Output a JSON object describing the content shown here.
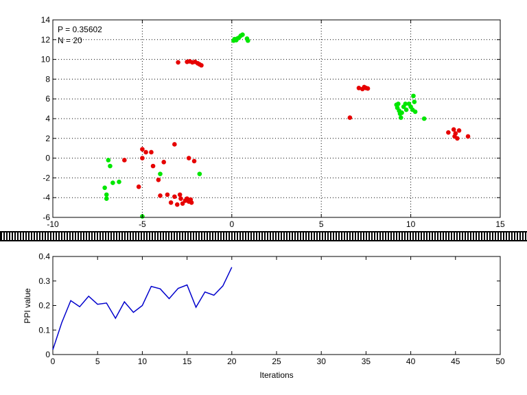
{
  "colors": {
    "background": "#ffffff",
    "axis": "#000000",
    "grid": "#000000",
    "green_points": "#00e600",
    "red_points": "#e60000",
    "line": "#0000cc",
    "divider": "#000000"
  },
  "chart_data": [
    {
      "type": "scatter",
      "title": "",
      "xlabel": "",
      "ylabel": "",
      "xlim": [
        -10,
        15
      ],
      "ylim": [
        -6,
        14
      ],
      "xticks": [
        -10,
        -5,
        0,
        5,
        10,
        15
      ],
      "yticks": [
        -6,
        -4,
        -2,
        0,
        2,
        4,
        6,
        8,
        10,
        12,
        14
      ],
      "grid": true,
      "annotations": [
        "P = 0.35602",
        "N = 20"
      ],
      "series": [
        {
          "color": "#00e600",
          "points": [
            [
              0.1,
              11.9
            ],
            [
              0.2,
              12.0
            ],
            [
              0.3,
              12.1
            ],
            [
              0.25,
              11.95
            ],
            [
              0.4,
              12.2
            ],
            [
              0.5,
              12.4
            ],
            [
              0.6,
              12.5
            ],
            [
              0.85,
              12.1
            ],
            [
              0.9,
              11.9
            ],
            [
              0.15,
              12.05
            ],
            [
              9.2,
              5.4
            ],
            [
              9.3,
              5.5
            ],
            [
              9.25,
              5.1
            ],
            [
              9.35,
              4.8
            ],
            [
              9.4,
              4.5
            ],
            [
              9.45,
              4.1
            ],
            [
              9.5,
              4.6
            ],
            [
              9.6,
              5.2
            ],
            [
              9.7,
              5.5
            ],
            [
              9.75,
              4.9
            ],
            [
              9.9,
              5.5
            ],
            [
              10.0,
              5.2
            ],
            [
              10.1,
              4.9
            ],
            [
              10.15,
              6.3
            ],
            [
              10.2,
              5.7
            ],
            [
              10.25,
              4.7
            ],
            [
              10.75,
              4.0
            ],
            [
              -6.9,
              -0.2
            ],
            [
              -6.8,
              -0.8
            ],
            [
              -6.65,
              -2.5
            ],
            [
              -6.3,
              -2.4
            ],
            [
              -7.1,
              -3.0
            ],
            [
              -7.0,
              -3.7
            ],
            [
              -7.0,
              -4.1
            ],
            [
              -4.0,
              -1.6
            ],
            [
              -1.8,
              -1.6
            ],
            [
              -5.0,
              -5.9
            ]
          ]
        },
        {
          "color": "#e60000",
          "points": [
            [
              -3.0,
              9.7
            ],
            [
              -2.5,
              9.75
            ],
            [
              -2.35,
              9.8
            ],
            [
              -2.2,
              9.7
            ],
            [
              -2.05,
              9.75
            ],
            [
              -1.9,
              9.6
            ],
            [
              -1.8,
              9.5
            ],
            [
              -1.7,
              9.4
            ],
            [
              7.1,
              7.1
            ],
            [
              7.3,
              7.0
            ],
            [
              7.4,
              7.2
            ],
            [
              7.5,
              7.1
            ],
            [
              7.6,
              7.05
            ],
            [
              6.6,
              4.1
            ],
            [
              12.1,
              2.6
            ],
            [
              12.4,
              2.9
            ],
            [
              12.5,
              2.5
            ],
            [
              12.45,
              2.2
            ],
            [
              12.6,
              2.0
            ],
            [
              12.7,
              2.8
            ],
            [
              13.2,
              2.2
            ],
            [
              -6.0,
              -0.2
            ],
            [
              -5.0,
              0.0
            ],
            [
              -5.0,
              0.9
            ],
            [
              -4.8,
              0.6
            ],
            [
              -4.5,
              0.6
            ],
            [
              -4.4,
              -0.8
            ],
            [
              -4.1,
              -2.2
            ],
            [
              -3.8,
              -0.4
            ],
            [
              -3.2,
              1.4
            ],
            [
              -2.4,
              0.0
            ],
            [
              -2.1,
              -0.3
            ],
            [
              -5.2,
              -2.9
            ],
            [
              -4.0,
              -3.8
            ],
            [
              -3.6,
              -3.7
            ],
            [
              -3.4,
              -4.5
            ],
            [
              -3.2,
              -3.9
            ],
            [
              -3.05,
              -4.7
            ],
            [
              -2.9,
              -3.7
            ],
            [
              -2.85,
              -4.1
            ],
            [
              -2.75,
              -4.6
            ],
            [
              -2.6,
              -4.3
            ],
            [
              -2.5,
              -4.1
            ],
            [
              -2.4,
              -4.4
            ],
            [
              -2.3,
              -4.2
            ],
            [
              -2.25,
              -4.5
            ]
          ]
        }
      ]
    },
    {
      "type": "line",
      "title": "",
      "xlabel": "Iterations",
      "ylabel": "PPI value",
      "xlim": [
        0,
        50
      ],
      "ylim": [
        0,
        0.4
      ],
      "xticks": [
        0,
        5,
        10,
        15,
        20,
        25,
        30,
        35,
        40,
        45,
        50
      ],
      "yticks": [
        0,
        0.1,
        0.2,
        0.3,
        0.4
      ],
      "ytick_labels": [
        "0",
        "0.1",
        "0.2",
        "0.3",
        "0.4"
      ],
      "grid": false,
      "series": [
        {
          "color": "#0000cc",
          "x": [
            0,
            1,
            2,
            3,
            4,
            5,
            6,
            7,
            8,
            9,
            10,
            11,
            12,
            13,
            14,
            15,
            16,
            17,
            18,
            19,
            20
          ],
          "values": [
            0.02,
            0.13,
            0.22,
            0.195,
            0.238,
            0.205,
            0.21,
            0.148,
            0.215,
            0.172,
            0.2,
            0.278,
            0.268,
            0.228,
            0.27,
            0.284,
            0.193,
            0.255,
            0.242,
            0.28,
            0.356
          ]
        }
      ]
    }
  ]
}
